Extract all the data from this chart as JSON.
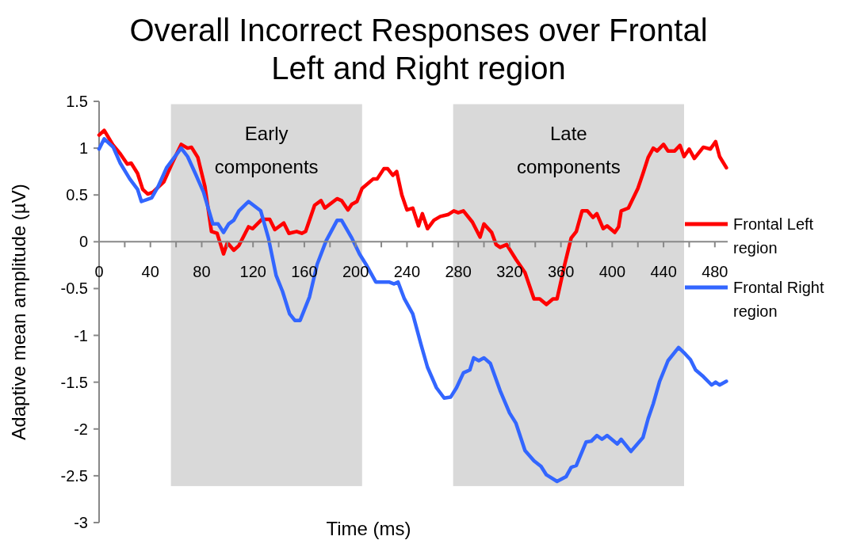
{
  "chart_data": {
    "type": "line",
    "title": "Overall Incorrect Responses over Frontal Left and Right region",
    "xlabel": "Time (ms)",
    "ylabel": "Adaptive mean amplitude (µV)",
    "xlim": [
      0,
      490
    ],
    "ylim": [
      -3,
      1.5
    ],
    "xticks": [
      0,
      {
        "value": 20,
        "label": null
      },
      40,
      {
        "value": 60,
        "label": null
      },
      80,
      {
        "value": 100,
        "label": null
      },
      120,
      {
        "value": 140,
        "label": null
      },
      160,
      {
        "value": 180,
        "label": null
      },
      200,
      {
        "value": 220,
        "label": null
      },
      240,
      {
        "value": 260,
        "label": null
      },
      280,
      {
        "value": 300,
        "label": null
      },
      320,
      {
        "value": 340,
        "label": null
      },
      360,
      {
        "value": 380,
        "label": null
      },
      400,
      {
        "value": 420,
        "label": null
      },
      440,
      {
        "value": 460,
        "label": null
      },
      480
    ],
    "yticks": [
      -3,
      -2.5,
      -2,
      -1.5,
      -1,
      -0.5,
      0,
      0.5,
      1,
      1.5
    ],
    "grid": false,
    "legend": "right",
    "bands": [
      {
        "axis": "x",
        "from": 56,
        "to": 205,
        "label": "Early components",
        "color": "#d9d9d9"
      },
      {
        "axis": "x",
        "from": 276,
        "to": 456,
        "label": "Late components",
        "color": "#d9d9d9"
      }
    ],
    "series": [
      {
        "name": "Frontal Left region",
        "color": "#ff0000",
        "x": [
          0,
          4,
          11,
          16.5,
          22,
          25,
          30,
          34,
          38,
          42,
          50.5,
          57,
          64,
          69,
          72,
          77,
          82.5,
          87.6,
          92,
          97,
          100,
          105,
          109,
          116.5,
          119.6,
          127,
          133,
          137,
          144,
          148,
          154,
          158,
          161,
          168,
          173,
          176,
          185.5,
          189,
          194,
          197,
          201,
          205,
          213.6,
          216.7,
          222,
          225,
          229,
          232,
          236,
          240,
          244.5,
          249,
          252,
          256,
          261,
          266,
          272,
          276.5,
          280,
          284,
          291,
          297,
          300,
          306,
          309.5,
          312.6,
          317.7,
          325,
          332,
          339,
          343.5,
          348.7,
          353.8,
          357,
          363,
          368,
          372,
          376.5,
          380.6,
          385,
          388,
          393,
          396,
          402,
          405,
          407,
          412.6,
          420,
          424,
          428,
          432,
          435,
          440,
          443.5,
          448.7,
          452.8,
          456,
          460,
          464,
          471,
          476.5,
          480.6,
          483.7,
          489
        ],
        "values": [
          1.14,
          1.19,
          1.03,
          0.94,
          0.83,
          0.84,
          0.73,
          0.56,
          0.51,
          0.53,
          0.64,
          0.84,
          1.04,
          1.0,
          1.01,
          0.9,
          0.59,
          0.11,
          0.09,
          -0.13,
          -0.01,
          -0.09,
          -0.04,
          0.16,
          0.14,
          0.24,
          0.24,
          0.13,
          0.2,
          0.09,
          0.11,
          0.09,
          0.11,
          0.39,
          0.44,
          0.36,
          0.46,
          0.44,
          0.34,
          0.4,
          0.43,
          0.57,
          0.67,
          0.67,
          0.78,
          0.78,
          0.71,
          0.75,
          0.5,
          0.34,
          0.36,
          0.17,
          0.3,
          0.14,
          0.23,
          0.27,
          0.29,
          0.33,
          0.31,
          0.33,
          0.21,
          0.05,
          0.19,
          0.1,
          -0.03,
          -0.06,
          -0.03,
          -0.19,
          -0.33,
          -0.61,
          -0.61,
          -0.67,
          -0.61,
          -0.61,
          -0.24,
          0.04,
          0.11,
          0.33,
          0.33,
          0.26,
          0.3,
          0.14,
          0.17,
          0.1,
          0.16,
          0.33,
          0.36,
          0.57,
          0.73,
          0.9,
          1.0,
          0.97,
          1.04,
          0.97,
          0.97,
          1.03,
          0.91,
          0.99,
          0.89,
          1.01,
          0.99,
          1.07,
          0.91,
          0.79
        ]
      },
      {
        "name": "Frontal Right region",
        "color": "#3366ff",
        "x": [
          0,
          4,
          11,
          16.5,
          24,
          30,
          33,
          41,
          46,
          52.6,
          64,
          69,
          75,
          81.4,
          88.7,
          92.8,
          97,
          101,
          105,
          109,
          116.5,
          126,
          132,
          138,
          143,
          148.5,
          152.6,
          156.7,
          164,
          170,
          177,
          185.6,
          189,
          197,
          203,
          208,
          215.7,
          226,
          230,
          233,
          238,
          244.5,
          251,
          256,
          263,
          269,
          274,
          278.6,
          284,
          289,
          292,
          296,
          300,
          305,
          312.6,
          320,
          325,
          332,
          339,
          344.5,
          348.7,
          357,
          364,
          368,
          372,
          379.6,
          383.7,
          388,
          392,
          396,
          404,
          407,
          414.6,
          424,
          428,
          432,
          437,
          443.5,
          451.7,
          457,
          461,
          465,
          471,
          477.5,
          480.6,
          483.7,
          489
        ],
        "values": [
          0.99,
          1.1,
          1.01,
          0.84,
          0.67,
          0.56,
          0.43,
          0.47,
          0.59,
          0.79,
          1.0,
          0.91,
          0.73,
          0.53,
          0.19,
          0.19,
          0.1,
          0.19,
          0.23,
          0.33,
          0.43,
          0.33,
          0.04,
          -0.36,
          -0.53,
          -0.77,
          -0.84,
          -0.84,
          -0.59,
          -0.24,
          0.01,
          0.23,
          0.23,
          0.04,
          -0.13,
          -0.24,
          -0.43,
          -0.43,
          -0.45,
          -0.43,
          -0.61,
          -0.77,
          -1.1,
          -1.34,
          -1.56,
          -1.67,
          -1.66,
          -1.56,
          -1.4,
          -1.37,
          -1.24,
          -1.27,
          -1.24,
          -1.3,
          -1.59,
          -1.83,
          -1.94,
          -2.23,
          -2.34,
          -2.4,
          -2.49,
          -2.56,
          -2.51,
          -2.41,
          -2.39,
          -2.14,
          -2.13,
          -2.07,
          -2.11,
          -2.07,
          -2.16,
          -2.11,
          -2.24,
          -2.09,
          -1.89,
          -1.73,
          -1.49,
          -1.27,
          -1.13,
          -1.2,
          -1.26,
          -1.37,
          -1.44,
          -1.53,
          -1.5,
          -1.53,
          -1.49
        ]
      }
    ]
  }
}
